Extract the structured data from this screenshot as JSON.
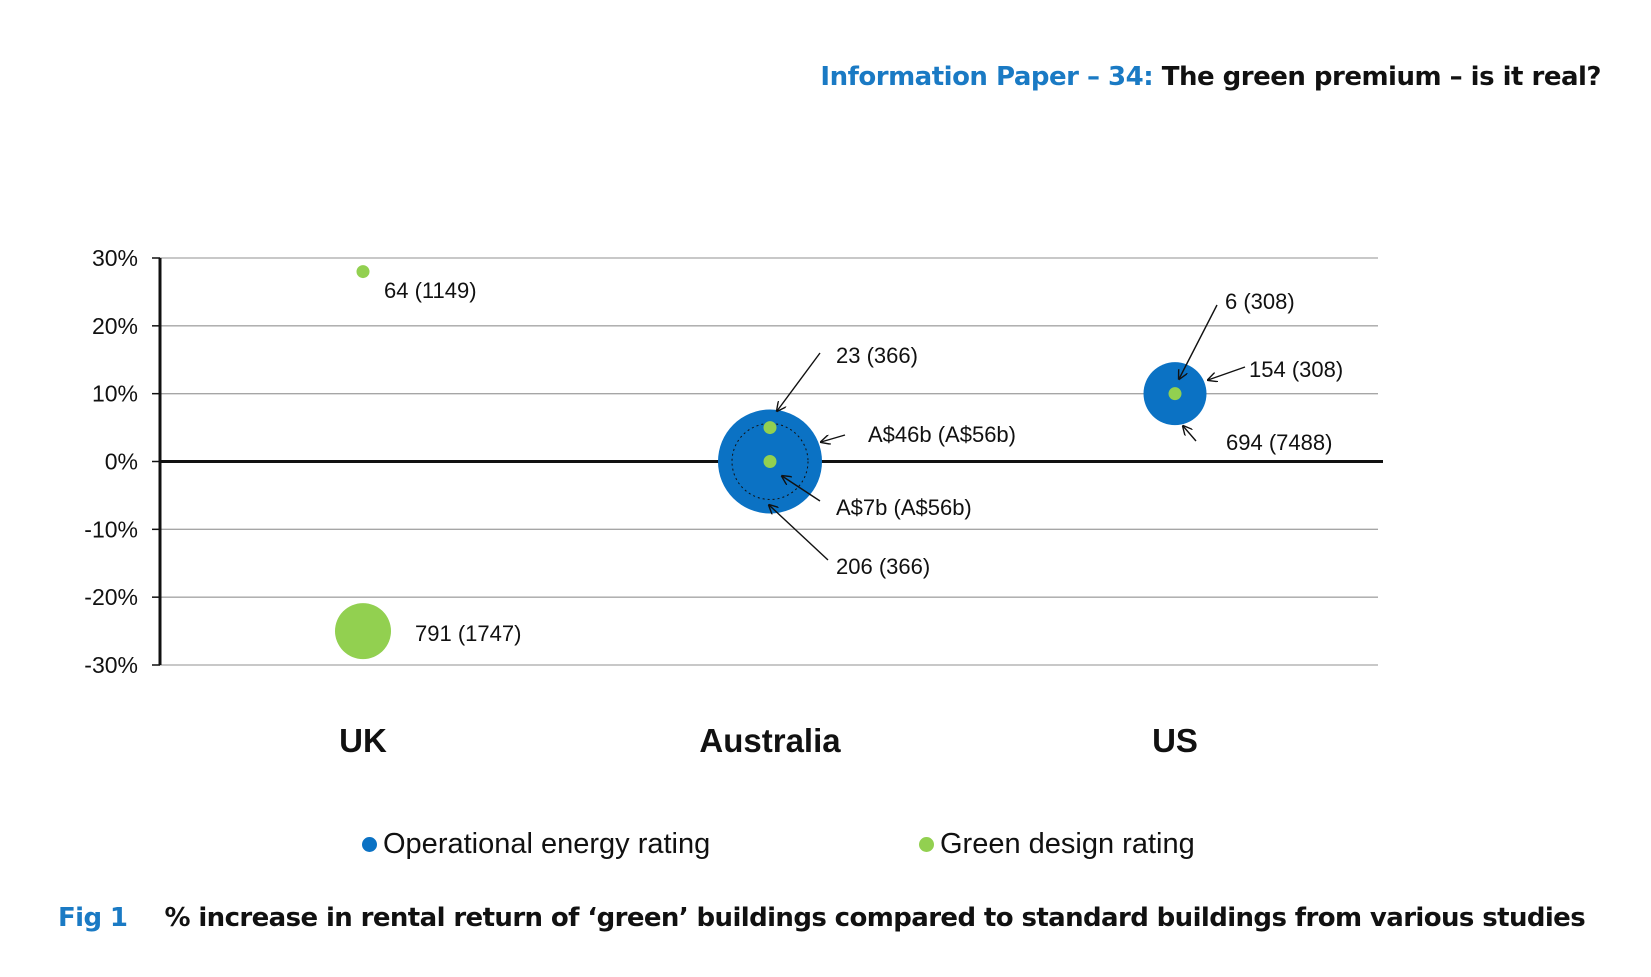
{
  "header": {
    "prefix": "Information Paper – 34:",
    "title": "The green premium – is it real?"
  },
  "colors": {
    "operational": "#0b72c4",
    "green": "#92d050",
    "accent": "#1a7ac4"
  },
  "caption": {
    "label": "Fig 1",
    "text": "% increase in rental return of ‘green’ buildings compared to standard buildings from various studies"
  },
  "chart_data": {
    "type": "bubble",
    "categories": [
      "UK",
      "Australia",
      "US"
    ],
    "ylim": [
      -30,
      30
    ],
    "yticks": [
      30,
      20,
      10,
      0,
      -10,
      -20,
      -30
    ],
    "ytick_labels": [
      "30%",
      "20%",
      "10%",
      "0%",
      "-10%",
      "-20%",
      "-30%"
    ],
    "grid": true,
    "legend": [
      {
        "name": "Operational energy rating",
        "color": "#0b72c4"
      },
      {
        "name": "Green design rating",
        "color": "#92d050"
      }
    ],
    "series": [
      {
        "name": "Operational energy rating",
        "points": [
          {
            "category": "Australia",
            "y": 0,
            "size": 206,
            "label": "206 (366)"
          },
          {
            "category": "US",
            "y": 10,
            "size": 154,
            "label": "154 (308)"
          }
        ]
      },
      {
        "name": "Green design rating",
        "points": [
          {
            "category": "UK",
            "y": 28,
            "size": 64,
            "label": "64 (1149)"
          },
          {
            "category": "UK",
            "y": -25,
            "size": 791,
            "label": "791 (1747)"
          },
          {
            "category": "Australia",
            "y": 5,
            "size": 23,
            "label": "23 (366)"
          },
          {
            "category": "Australia",
            "y": 0,
            "size": 7,
            "label": "A$7b (A$56b)"
          },
          {
            "category": "US",
            "y": 10,
            "size": 6,
            "label": "6 (308)"
          }
        ]
      }
    ],
    "annotations": [
      "A$46b (A$56b)",
      "694 (7488)"
    ]
  }
}
